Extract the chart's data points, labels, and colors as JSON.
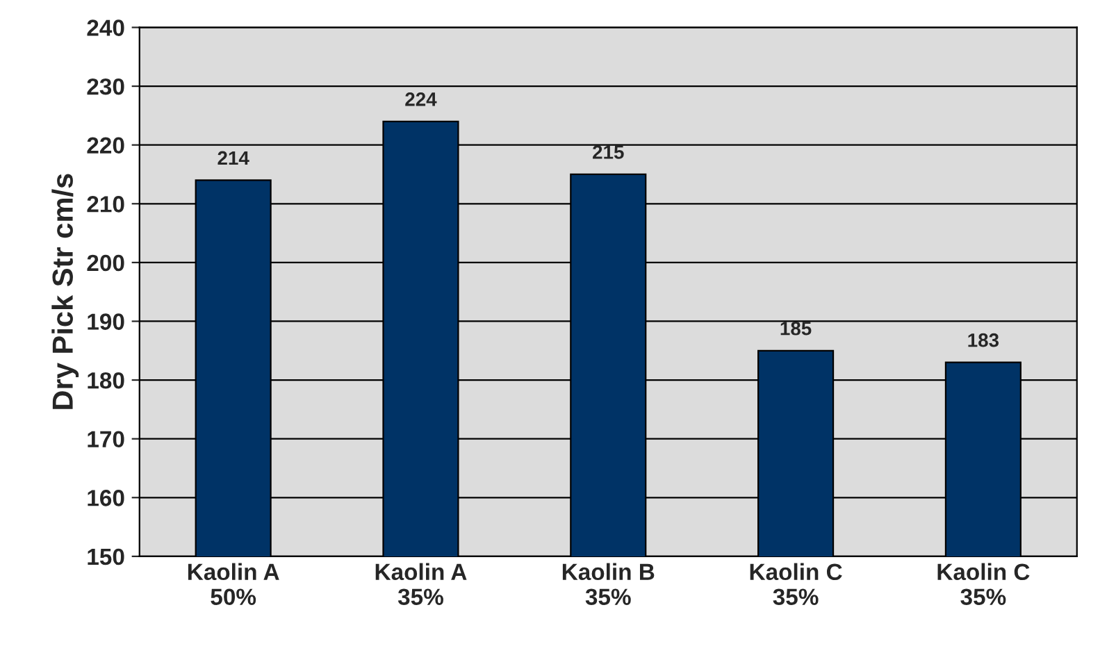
{
  "chart_data": {
    "type": "bar",
    "ylabel": "Dry Pick Str cm/s",
    "categories": [
      "Kaolin A\n50%",
      "Kaolin A\n35%",
      "Kaolin B\n35%",
      "Kaolin C\n35%",
      "Kaolin C\n35%"
    ],
    "values": [
      214,
      224,
      215,
      185,
      183
    ],
    "color": "#003366",
    "ylim": [
      150,
      240
    ],
    "yticks": [
      150,
      160,
      170,
      180,
      190,
      200,
      210,
      220,
      230,
      240
    ],
    "grid": "y",
    "data_labels": true,
    "legend": false
  }
}
